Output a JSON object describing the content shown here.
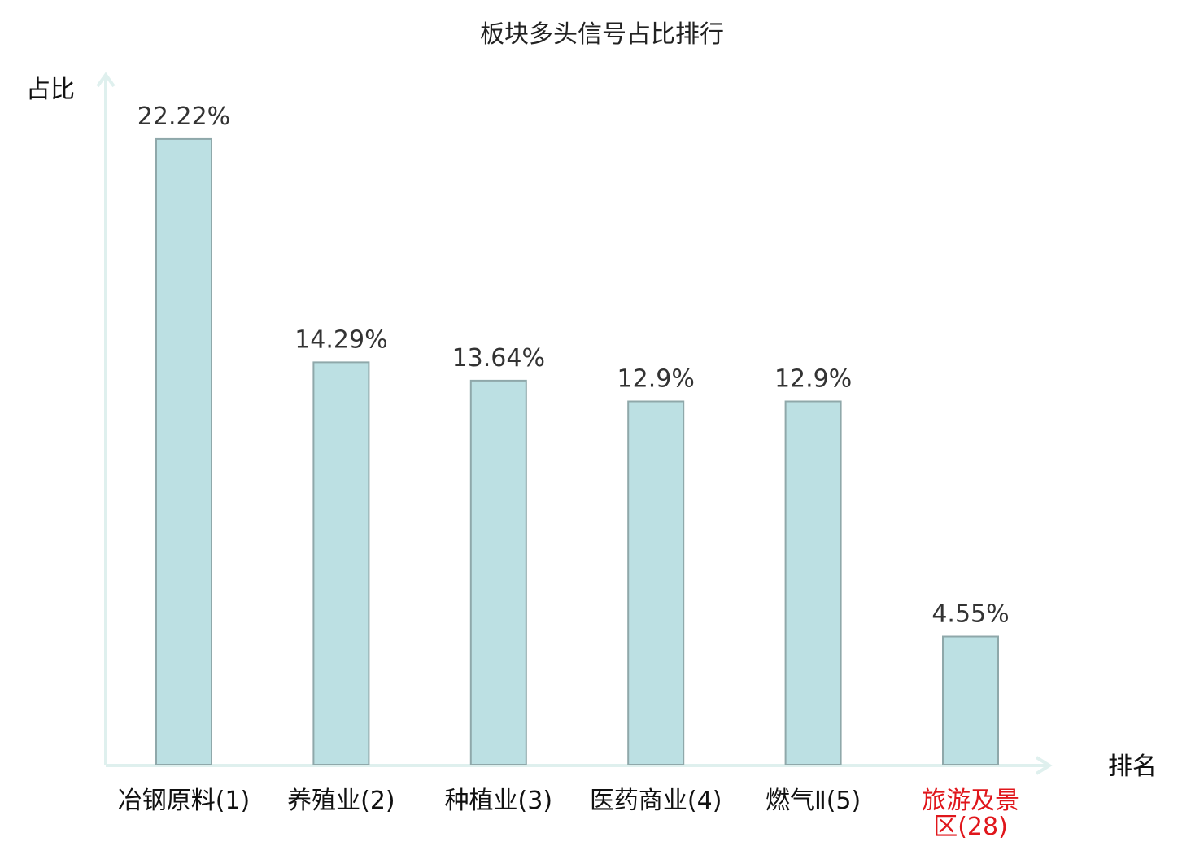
{
  "chart_data": {
    "type": "bar",
    "title": "板块多头信号占比排行",
    "ylabel": "占比",
    "xlabel": "排名",
    "categories": [
      [
        "冶钢原料(1)"
      ],
      [
        "养殖业(2)"
      ],
      [
        "种植业(3)"
      ],
      [
        "医药商业(4)"
      ],
      [
        "燃气Ⅱ(5)"
      ],
      [
        "旅游及景",
        "区(28)"
      ]
    ],
    "values": [
      22.22,
      14.29,
      13.64,
      12.9,
      12.9,
      4.55
    ],
    "value_labels": [
      "22.22%",
      "14.29%",
      "13.64%",
      "12.9%",
      "12.9%",
      "4.55%"
    ],
    "highlight_index": 5,
    "ylim": [
      0,
      24.5
    ],
    "grid": false,
    "colors": {
      "bar_fill": "#bce0e3",
      "bar_stroke": "#8fa8aa",
      "axis": "#dff0ee",
      "highlight_text": "#e0161b"
    }
  }
}
